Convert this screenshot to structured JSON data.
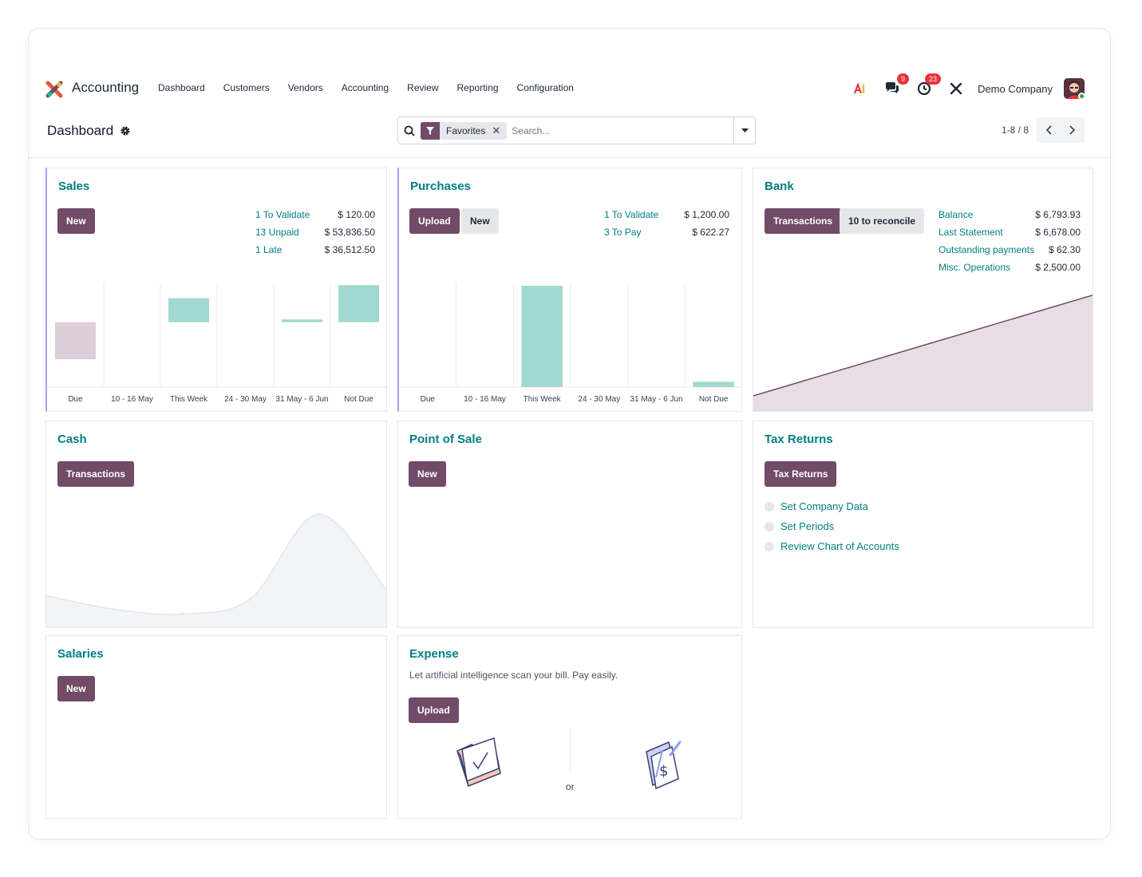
{
  "app": {
    "title": "Accounting",
    "menu": [
      "Dashboard",
      "Customers",
      "Vendors",
      "Accounting",
      "Review",
      "Reporting",
      "Configuration"
    ],
    "systray": {
      "messages_count": "9",
      "activities_count": "23",
      "company": "Demo Company"
    }
  },
  "control": {
    "breadcrumb": "Dashboard",
    "search": {
      "facet": "Favorites",
      "placeholder": "Search..."
    },
    "pager": "1-8 / 8"
  },
  "colors": {
    "primary": "#714b67",
    "teal": "#017e84",
    "bar": "#a2d8d2",
    "bar_past": "#dccfd9"
  },
  "cards": {
    "sales": {
      "title": "Sales",
      "new_label": "New",
      "stats": [
        {
          "label": "1 To Validate",
          "value": "$ 120.00"
        },
        {
          "label": "13 Unpaid",
          "value": "$ 53,836.50"
        },
        {
          "label": "1 Late",
          "value": "$ 36,512.50"
        }
      ]
    },
    "purchases": {
      "title": "Purchases",
      "upload_label": "Upload",
      "new_label": "New",
      "stats": [
        {
          "label": "1 To Validate",
          "value": "$ 1,200.00"
        },
        {
          "label": "3 To Pay",
          "value": "$ 622.27"
        }
      ]
    },
    "bank": {
      "title": "Bank",
      "transactions_label": "Transactions",
      "reconcile_label": "10 to reconcile",
      "stats": [
        {
          "label": "Balance",
          "value": "$ 6,793.93"
        },
        {
          "label": "Last Statement",
          "value": "$ 6,678.00"
        },
        {
          "label": "Outstanding payments",
          "value": "$ 62.30"
        },
        {
          "label": "Misc. Operations",
          "value": "$ 2,500.00"
        }
      ]
    },
    "cash": {
      "title": "Cash",
      "transactions_label": "Transactions"
    },
    "pos": {
      "title": "Point of Sale",
      "new_label": "New"
    },
    "tax": {
      "title": "Tax Returns",
      "button_label": "Tax Returns",
      "steps": [
        "Set Company Data",
        "Set Periods",
        "Review Chart of Accounts"
      ]
    },
    "salaries": {
      "title": "Salaries",
      "new_label": "New"
    },
    "expense": {
      "title": "Expense",
      "description": "Let artificial intelligence scan your bill. Pay easily.",
      "upload_label": "Upload",
      "or_label": "or"
    }
  },
  "chart_data": [
    {
      "type": "bar",
      "title": "Sales",
      "categories": [
        "Due",
        "10 - 16 May",
        "This Week",
        "24 - 30 May",
        "31 May - 6 Jun",
        "Not Due"
      ],
      "values": [
        -2.0,
        0,
        1.3,
        0,
        0.15,
        2.0
      ],
      "ylim": [
        -3.5,
        2.1
      ]
    },
    {
      "type": "bar",
      "title": "Purchases",
      "categories": [
        "Due",
        "10 - 16 May",
        "This Week",
        "24 - 30 May",
        "31 May - 6 Jun",
        "Not Due"
      ],
      "values": [
        0,
        0,
        1200,
        0,
        0,
        62
      ],
      "ylim": [
        0,
        1230
      ]
    },
    {
      "type": "area",
      "title": "Bank",
      "x": [
        0,
        1
      ],
      "y": [
        0,
        1
      ],
      "ylim": [
        0,
        1.15
      ]
    },
    {
      "type": "line",
      "title": "Cash",
      "x": [
        0,
        1,
        2,
        3,
        4,
        5
      ],
      "y": [
        0.3,
        0.08,
        0,
        0.25,
        1.65,
        0.4
      ],
      "ylim": [
        -0.1,
        1.8
      ]
    }
  ]
}
